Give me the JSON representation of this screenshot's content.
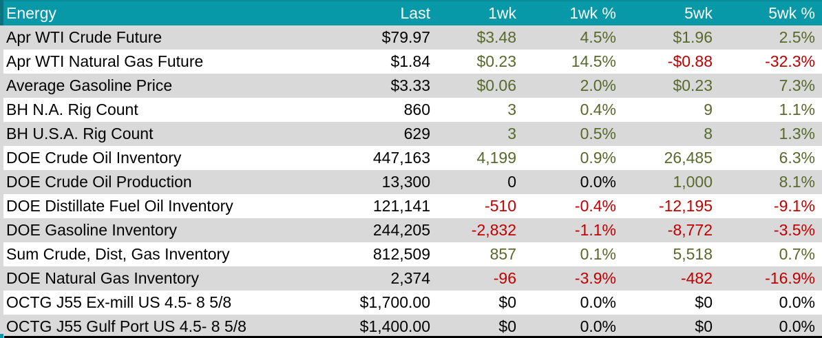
{
  "colors": {
    "header_teal": "#0899a8",
    "header_teal_dark": "#0b727f",
    "header_teal_top": "#0a8a99",
    "row_shade": "#d9d9d9",
    "positive": "#5a682b",
    "negative": "#c00000",
    "neutral": "#000000"
  },
  "table": {
    "columns": [
      {
        "label": "Energy"
      },
      {
        "label": "Last"
      },
      {
        "label": "1wk"
      },
      {
        "label": "1wk %"
      },
      {
        "label": "5wk"
      },
      {
        "label": "5wk %"
      }
    ],
    "rows": [
      {
        "label": "Apr WTI Crude Future",
        "cells": [
          {
            "v": "$79.97",
            "tone": "plain"
          },
          {
            "v": "$3.48",
            "tone": "pos"
          },
          {
            "v": "4.5%",
            "tone": "pos"
          },
          {
            "v": "$1.96",
            "tone": "pos"
          },
          {
            "v": "2.5%",
            "tone": "pos"
          }
        ]
      },
      {
        "label": "Apr WTI Natural Gas Future",
        "cells": [
          {
            "v": "$1.84",
            "tone": "plain"
          },
          {
            "v": "$0.23",
            "tone": "pos"
          },
          {
            "v": "14.5%",
            "tone": "pos"
          },
          {
            "v": "-$0.88",
            "tone": "neg"
          },
          {
            "v": "-32.3%",
            "tone": "neg"
          }
        ]
      },
      {
        "label": "Average Gasoline Price",
        "cells": [
          {
            "v": "$3.33",
            "tone": "plain"
          },
          {
            "v": "$0.06",
            "tone": "pos"
          },
          {
            "v": "2.0%",
            "tone": "pos"
          },
          {
            "v": "$0.23",
            "tone": "pos"
          },
          {
            "v": "7.3%",
            "tone": "pos"
          }
        ]
      },
      {
        "label": "BH N.A. Rig Count",
        "cells": [
          {
            "v": "860",
            "tone": "plain"
          },
          {
            "v": "3",
            "tone": "pos"
          },
          {
            "v": "0.4%",
            "tone": "pos"
          },
          {
            "v": "9",
            "tone": "pos"
          },
          {
            "v": "1.1%",
            "tone": "pos"
          }
        ]
      },
      {
        "label": "BH U.S.A. Rig Count",
        "cells": [
          {
            "v": "629",
            "tone": "plain"
          },
          {
            "v": "3",
            "tone": "pos"
          },
          {
            "v": "0.5%",
            "tone": "pos"
          },
          {
            "v": "8",
            "tone": "pos"
          },
          {
            "v": "1.3%",
            "tone": "pos"
          }
        ]
      },
      {
        "label": "DOE Crude Oil Inventory",
        "cells": [
          {
            "v": "447,163",
            "tone": "plain"
          },
          {
            "v": "4,199",
            "tone": "pos"
          },
          {
            "v": "0.9%",
            "tone": "pos"
          },
          {
            "v": "26,485",
            "tone": "pos"
          },
          {
            "v": "6.3%",
            "tone": "pos"
          }
        ]
      },
      {
        "label": "DOE Crude Oil Production",
        "cells": [
          {
            "v": "13,300",
            "tone": "plain"
          },
          {
            "v": "0",
            "tone": "plain"
          },
          {
            "v": "0.0%",
            "tone": "plain"
          },
          {
            "v": "1,000",
            "tone": "pos"
          },
          {
            "v": "8.1%",
            "tone": "pos"
          }
        ]
      },
      {
        "label": "DOE Distillate Fuel Oil Inventory",
        "cells": [
          {
            "v": "121,141",
            "tone": "plain"
          },
          {
            "v": "-510",
            "tone": "neg"
          },
          {
            "v": "-0.4%",
            "tone": "neg"
          },
          {
            "v": "-12,195",
            "tone": "neg"
          },
          {
            "v": "-9.1%",
            "tone": "neg"
          }
        ]
      },
      {
        "label": "DOE Gasoline Inventory",
        "cells": [
          {
            "v": "244,205",
            "tone": "plain"
          },
          {
            "v": "-2,832",
            "tone": "neg"
          },
          {
            "v": "-1.1%",
            "tone": "neg"
          },
          {
            "v": "-8,772",
            "tone": "neg"
          },
          {
            "v": "-3.5%",
            "tone": "neg"
          }
        ]
      },
      {
        "label": "Sum Crude, Dist, Gas Inventory",
        "cells": [
          {
            "v": "812,509",
            "tone": "plain"
          },
          {
            "v": "857",
            "tone": "pos"
          },
          {
            "v": "0.1%",
            "tone": "pos"
          },
          {
            "v": "5,518",
            "tone": "pos"
          },
          {
            "v": "0.7%",
            "tone": "pos"
          }
        ]
      },
      {
        "label": "DOE Natural Gas Inventory",
        "cells": [
          {
            "v": "2,374",
            "tone": "plain"
          },
          {
            "v": "-96",
            "tone": "neg"
          },
          {
            "v": "-3.9%",
            "tone": "neg"
          },
          {
            "v": "-482",
            "tone": "neg"
          },
          {
            "v": "-16.9%",
            "tone": "neg"
          }
        ]
      },
      {
        "label": "OCTG J55 Ex-mill US 4.5- 8 5/8",
        "cells": [
          {
            "v": "$1,700.00",
            "tone": "plain"
          },
          {
            "v": "$0",
            "tone": "plain"
          },
          {
            "v": "0.0%",
            "tone": "plain"
          },
          {
            "v": "$0",
            "tone": "plain"
          },
          {
            "v": "0.0%",
            "tone": "plain"
          }
        ]
      },
      {
        "label": "OCTG J55 Gulf Port US 4.5- 8 5/8",
        "cells": [
          {
            "v": "$1,400.00",
            "tone": "plain"
          },
          {
            "v": "$0",
            "tone": "plain"
          },
          {
            "v": "0.0%",
            "tone": "plain"
          },
          {
            "v": "$0",
            "tone": "plain"
          },
          {
            "v": "0.0%",
            "tone": "plain"
          }
        ]
      }
    ]
  }
}
